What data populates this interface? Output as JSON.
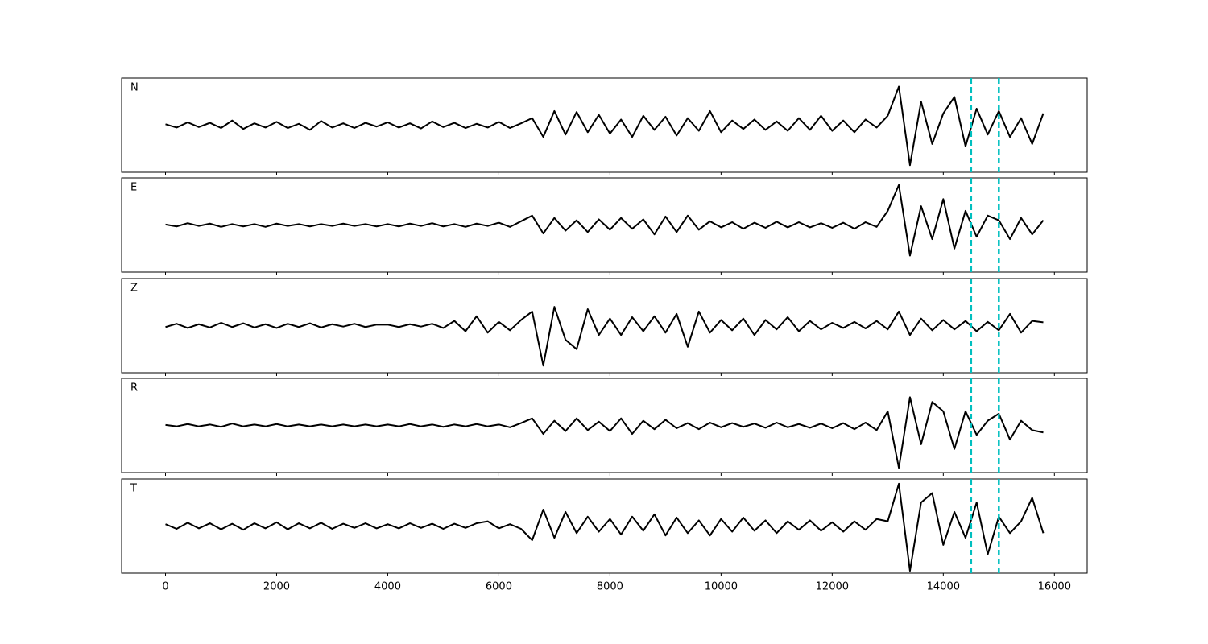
{
  "chart_data": {
    "type": "line",
    "x": [
      0,
      200,
      400,
      600,
      800,
      1000,
      1200,
      1400,
      1600,
      1800,
      2000,
      2200,
      2400,
      2600,
      2800,
      3000,
      3200,
      3400,
      3600,
      3800,
      4000,
      4200,
      4400,
      4600,
      4800,
      5000,
      5200,
      5400,
      5600,
      5800,
      6000,
      6200,
      6400,
      6600,
      6800,
      7000,
      7200,
      7400,
      7600,
      7800,
      8000,
      8200,
      8400,
      8600,
      8800,
      9000,
      9200,
      9400,
      9600,
      9800,
      10000,
      10200,
      10400,
      10600,
      10800,
      11000,
      11200,
      11400,
      11600,
      11800,
      12000,
      12200,
      12400,
      12600,
      12800,
      13000,
      13200,
      13400,
      13600,
      13800,
      14000,
      14200,
      14400,
      14600,
      14800,
      15000,
      15200,
      15400,
      15600,
      15800
    ],
    "xlim": [
      -790,
      16590
    ],
    "xticks": [
      0,
      2000,
      4000,
      6000,
      8000,
      10000,
      12000,
      14000,
      16000
    ],
    "ylim": [
      -1,
      1
    ],
    "vlines": [
      14500,
      15000
    ],
    "vline_color": "#00bfbf",
    "series": [
      {
        "name": "N",
        "color": "#000000",
        "values": [
          0.02,
          -0.05,
          0.06,
          -0.04,
          0.05,
          -0.06,
          0.1,
          -0.08,
          0.04,
          -0.05,
          0.07,
          -0.06,
          0.03,
          -0.1,
          0.09,
          -0.05,
          0.04,
          -0.06,
          0.05,
          -0.03,
          0.06,
          -0.05,
          0.04,
          -0.07,
          0.08,
          -0.04,
          0.05,
          -0.06,
          0.03,
          -0.05,
          0.07,
          -0.06,
          0.04,
          0.15,
          -0.25,
          0.3,
          -0.2,
          0.28,
          -0.15,
          0.22,
          -0.18,
          0.12,
          -0.25,
          0.2,
          -0.1,
          0.18,
          -0.22,
          0.15,
          -0.12,
          0.3,
          -0.15,
          0.1,
          -0.08,
          0.12,
          -0.1,
          0.08,
          -0.12,
          0.15,
          -0.1,
          0.2,
          -0.12,
          0.1,
          -0.15,
          0.12,
          -0.05,
          0.2,
          0.82,
          -0.85,
          0.5,
          -0.4,
          0.25,
          0.6,
          -0.45,
          0.35,
          -0.2,
          0.3,
          -0.25,
          0.15,
          -0.4,
          0.25
        ]
      },
      {
        "name": "E",
        "color": "#000000",
        "values": [
          0.01,
          -0.03,
          0.04,
          -0.02,
          0.03,
          -0.04,
          0.02,
          -0.03,
          0.02,
          -0.04,
          0.03,
          -0.02,
          0.02,
          -0.03,
          0.02,
          -0.02,
          0.03,
          -0.02,
          0.02,
          -0.03,
          0.02,
          -0.03,
          0.03,
          -0.02,
          0.04,
          -0.03,
          0.02,
          -0.04,
          0.03,
          -0.02,
          0.05,
          -0.04,
          0.08,
          0.2,
          -0.18,
          0.15,
          -0.12,
          0.1,
          -0.15,
          0.12,
          -0.1,
          0.15,
          -0.08,
          0.12,
          -0.2,
          0.18,
          -0.15,
          0.2,
          -0.1,
          0.08,
          -0.05,
          0.06,
          -0.08,
          0.05,
          -0.06,
          0.07,
          -0.05,
          0.06,
          -0.05,
          0.04,
          -0.06,
          0.05,
          -0.08,
          0.06,
          -0.04,
          0.3,
          0.85,
          -0.65,
          0.4,
          -0.3,
          0.55,
          -0.5,
          0.3,
          -0.25,
          0.2,
          0.1,
          -0.3,
          0.15,
          -0.2,
          0.1
        ]
      },
      {
        "name": "Z",
        "color": "#000000",
        "values": [
          -0.03,
          0.04,
          -0.05,
          0.03,
          -0.04,
          0.06,
          -0.03,
          0.05,
          -0.04,
          0.03,
          -0.05,
          0.04,
          -0.03,
          0.05,
          -0.04,
          0.03,
          -0.02,
          0.04,
          -0.03,
          0.02,
          0.02,
          -0.03,
          0.03,
          -0.02,
          0.04,
          -0.05,
          0.1,
          -0.12,
          0.2,
          -0.15,
          0.08,
          -0.1,
          0.12,
          0.3,
          -0.85,
          0.4,
          -0.3,
          -0.5,
          0.35,
          -0.2,
          0.15,
          -0.2,
          0.18,
          -0.12,
          0.2,
          -0.15,
          0.25,
          -0.45,
          0.3,
          -0.15,
          0.12,
          -0.1,
          0.15,
          -0.2,
          0.12,
          -0.08,
          0.18,
          -0.12,
          0.1,
          -0.08,
          0.06,
          -0.05,
          0.08,
          -0.06,
          0.1,
          -0.08,
          0.3,
          -0.2,
          0.15,
          -0.1,
          0.12,
          -0.08,
          0.1,
          -0.12,
          0.08,
          -0.1,
          0.25,
          -0.15,
          0.1,
          0.07
        ]
      },
      {
        "name": "R",
        "color": "#000000",
        "values": [
          0.01,
          -0.02,
          0.03,
          -0.02,
          0.02,
          -0.03,
          0.04,
          -0.02,
          0.02,
          -0.02,
          0.03,
          -0.02,
          0.02,
          -0.02,
          0.02,
          -0.02,
          0.02,
          -0.02,
          0.02,
          -0.02,
          0.02,
          -0.02,
          0.03,
          -0.02,
          0.02,
          -0.03,
          0.02,
          -0.02,
          0.03,
          -0.02,
          0.02,
          -0.04,
          0.05,
          0.15,
          -0.18,
          0.1,
          -0.12,
          0.15,
          -0.1,
          0.08,
          -0.12,
          0.15,
          -0.18,
          0.1,
          -0.08,
          0.12,
          -0.06,
          0.05,
          -0.08,
          0.06,
          -0.04,
          0.05,
          -0.03,
          0.04,
          -0.05,
          0.06,
          -0.04,
          0.03,
          -0.05,
          0.04,
          -0.06,
          0.05,
          -0.08,
          0.06,
          -0.1,
          0.3,
          -0.9,
          0.6,
          -0.4,
          0.5,
          0.3,
          -0.5,
          0.3,
          -0.2,
          0.1,
          0.25,
          -0.3,
          0.1,
          -0.1,
          -0.15
        ]
      },
      {
        "name": "T",
        "color": "#000000",
        "values": [
          0.04,
          -0.06,
          0.07,
          -0.05,
          0.06,
          -0.07,
          0.05,
          -0.08,
          0.06,
          -0.05,
          0.08,
          -0.07,
          0.06,
          -0.05,
          0.07,
          -0.06,
          0.05,
          -0.04,
          0.06,
          -0.05,
          0.04,
          -0.05,
          0.06,
          -0.04,
          0.05,
          -0.06,
          0.05,
          -0.04,
          0.06,
          0.1,
          -0.05,
          0.04,
          -0.06,
          -0.3,
          0.35,
          -0.25,
          0.3,
          -0.15,
          0.2,
          -0.12,
          0.15,
          -0.18,
          0.2,
          -0.1,
          0.25,
          -0.2,
          0.18,
          -0.15,
          0.12,
          -0.2,
          0.15,
          -0.12,
          0.18,
          -0.1,
          0.12,
          -0.15,
          0.1,
          -0.08,
          0.12,
          -0.1,
          0.08,
          -0.12,
          0.1,
          -0.08,
          0.15,
          0.1,
          0.9,
          -0.95,
          0.5,
          0.7,
          -0.4,
          0.3,
          -0.25,
          0.5,
          -0.6,
          0.2,
          -0.15,
          0.1,
          0.6,
          -0.15
        ]
      }
    ]
  }
}
